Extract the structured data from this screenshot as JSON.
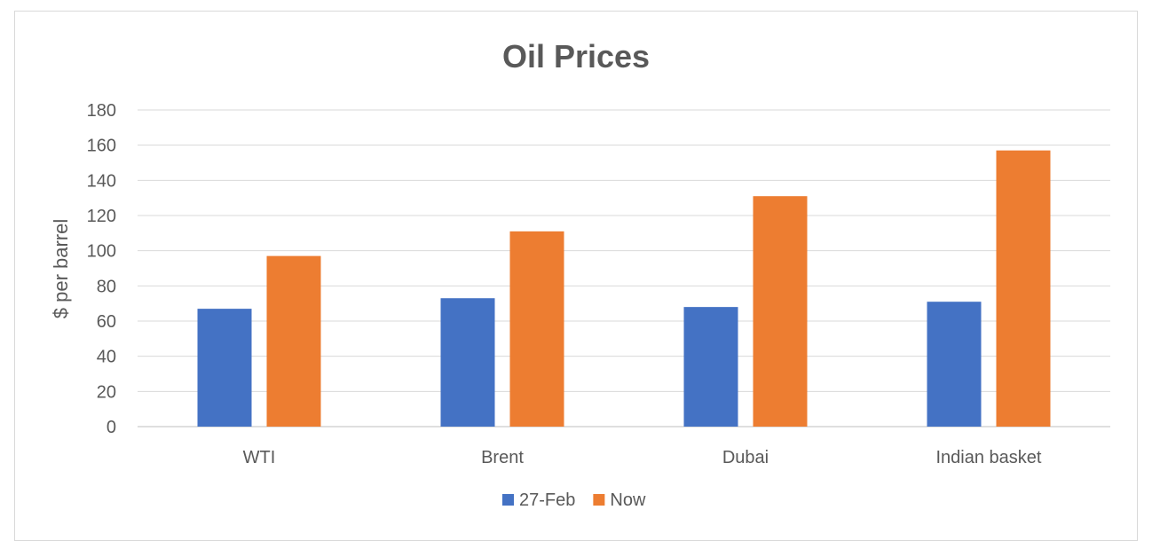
{
  "chart_data": {
    "type": "bar",
    "title": "Oil Prices",
    "xlabel": "",
    "ylabel": "$ per barrel",
    "categories": [
      "WTI",
      "Brent",
      "Dubai",
      "Indian basket"
    ],
    "series": [
      {
        "name": "27-Feb",
        "color": "#4472c4",
        "values": [
          67,
          73,
          68,
          71
        ]
      },
      {
        "name": "Now",
        "color": "#ed7d31",
        "values": [
          97,
          111,
          131,
          157
        ]
      }
    ],
    "ylim": [
      0,
      180
    ],
    "yticks": [
      0,
      20,
      40,
      60,
      80,
      100,
      120,
      140,
      160,
      180
    ],
    "grid": true,
    "legend_position": "bottom"
  }
}
